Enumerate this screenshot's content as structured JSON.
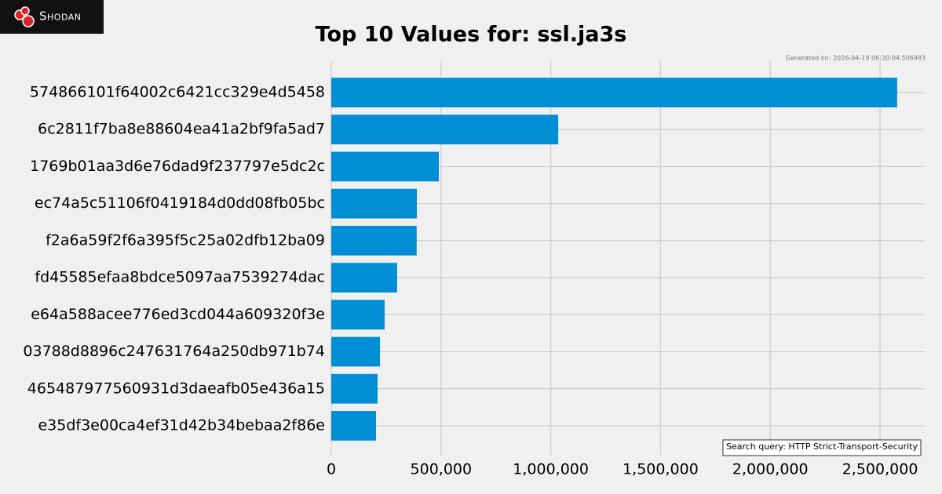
{
  "logo": {
    "text": "Shodan"
  },
  "chart_data": {
    "type": "barh",
    "title": "Top 10 Values for: ssl.ja3s",
    "generated_on": "Generated on: 2026-04-19 06:30:04.506983",
    "annotation": "Search query: HTTP Strict-Transport-Security",
    "categories": [
      "574866101f64002c6421cc329e4d5458",
      "6c2811f7ba8e88604ea41a2bf9fa5ad7",
      "1769b01aa3d6e76dad9f237797e5dc2c",
      "ec74a5c51106f0419184d0dd08fb05bc",
      "f2a6a59f2f6a395f5c25a02dfb12ba09",
      "fd45585efaa8bdce5097aa7539274dac",
      "e64a588acee776ed3cd044a609320f3e",
      "03788d8896c247631764a250db971b74",
      "465487977560931d3daeafb05e436a15",
      "e35df3e00ca4ef31d42b34bebaa2f86e"
    ],
    "values": [
      2578000,
      1034000,
      490000,
      390000,
      389000,
      300000,
      243000,
      222000,
      211000,
      204000
    ],
    "color": "#008fd5",
    "xlim": [
      0,
      2700000
    ],
    "xticks": [
      0,
      {
        "value": 500000,
        "label": "500,000"
      },
      {
        "value": 1000000,
        "label": "1,000,000"
      },
      {
        "value": 1500000,
        "label": "1,500,000"
      },
      {
        "value": 2000000,
        "label": "2,000,000"
      },
      {
        "value": 2500000,
        "label": "2,500,000"
      }
    ],
    "grid": true
  }
}
